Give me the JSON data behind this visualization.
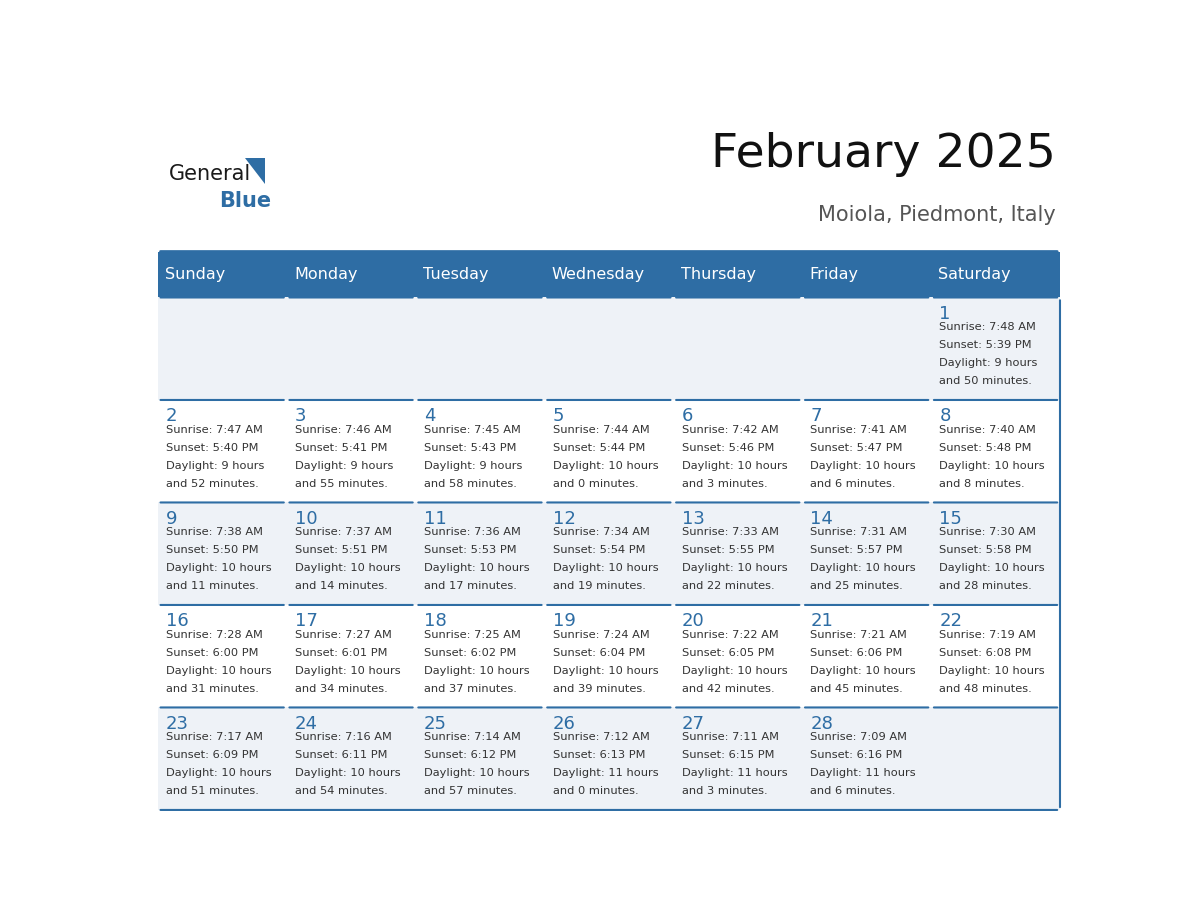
{
  "title": "February 2025",
  "subtitle": "Moiola, Piedmont, Italy",
  "header_bg": "#2E6DA4",
  "header_text_color": "#FFFFFF",
  "grid_line_color": "#2E6DA4",
  "day_number_color": "#2E6DA4",
  "text_color": "#333333",
  "days_of_week": [
    "Sunday",
    "Monday",
    "Tuesday",
    "Wednesday",
    "Thursday",
    "Friday",
    "Saturday"
  ],
  "calendar_data": [
    [
      null,
      null,
      null,
      null,
      null,
      null,
      {
        "day": 1,
        "sunrise": "7:48 AM",
        "sunset": "5:39 PM",
        "daylight1": "9 hours",
        "daylight2": "and 50 minutes."
      }
    ],
    [
      {
        "day": 2,
        "sunrise": "7:47 AM",
        "sunset": "5:40 PM",
        "daylight1": "9 hours",
        "daylight2": "and 52 minutes."
      },
      {
        "day": 3,
        "sunrise": "7:46 AM",
        "sunset": "5:41 PM",
        "daylight1": "9 hours",
        "daylight2": "and 55 minutes."
      },
      {
        "day": 4,
        "sunrise": "7:45 AM",
        "sunset": "5:43 PM",
        "daylight1": "9 hours",
        "daylight2": "and 58 minutes."
      },
      {
        "day": 5,
        "sunrise": "7:44 AM",
        "sunset": "5:44 PM",
        "daylight1": "10 hours",
        "daylight2": "and 0 minutes."
      },
      {
        "day": 6,
        "sunrise": "7:42 AM",
        "sunset": "5:46 PM",
        "daylight1": "10 hours",
        "daylight2": "and 3 minutes."
      },
      {
        "day": 7,
        "sunrise": "7:41 AM",
        "sunset": "5:47 PM",
        "daylight1": "10 hours",
        "daylight2": "and 6 minutes."
      },
      {
        "day": 8,
        "sunrise": "7:40 AM",
        "sunset": "5:48 PM",
        "daylight1": "10 hours",
        "daylight2": "and 8 minutes."
      }
    ],
    [
      {
        "day": 9,
        "sunrise": "7:38 AM",
        "sunset": "5:50 PM",
        "daylight1": "10 hours",
        "daylight2": "and 11 minutes."
      },
      {
        "day": 10,
        "sunrise": "7:37 AM",
        "sunset": "5:51 PM",
        "daylight1": "10 hours",
        "daylight2": "and 14 minutes."
      },
      {
        "day": 11,
        "sunrise": "7:36 AM",
        "sunset": "5:53 PM",
        "daylight1": "10 hours",
        "daylight2": "and 17 minutes."
      },
      {
        "day": 12,
        "sunrise": "7:34 AM",
        "sunset": "5:54 PM",
        "daylight1": "10 hours",
        "daylight2": "and 19 minutes."
      },
      {
        "day": 13,
        "sunrise": "7:33 AM",
        "sunset": "5:55 PM",
        "daylight1": "10 hours",
        "daylight2": "and 22 minutes."
      },
      {
        "day": 14,
        "sunrise": "7:31 AM",
        "sunset": "5:57 PM",
        "daylight1": "10 hours",
        "daylight2": "and 25 minutes."
      },
      {
        "day": 15,
        "sunrise": "7:30 AM",
        "sunset": "5:58 PM",
        "daylight1": "10 hours",
        "daylight2": "and 28 minutes."
      }
    ],
    [
      {
        "day": 16,
        "sunrise": "7:28 AM",
        "sunset": "6:00 PM",
        "daylight1": "10 hours",
        "daylight2": "and 31 minutes."
      },
      {
        "day": 17,
        "sunrise": "7:27 AM",
        "sunset": "6:01 PM",
        "daylight1": "10 hours",
        "daylight2": "and 34 minutes."
      },
      {
        "day": 18,
        "sunrise": "7:25 AM",
        "sunset": "6:02 PM",
        "daylight1": "10 hours",
        "daylight2": "and 37 minutes."
      },
      {
        "day": 19,
        "sunrise": "7:24 AM",
        "sunset": "6:04 PM",
        "daylight1": "10 hours",
        "daylight2": "and 39 minutes."
      },
      {
        "day": 20,
        "sunrise": "7:22 AM",
        "sunset": "6:05 PM",
        "daylight1": "10 hours",
        "daylight2": "and 42 minutes."
      },
      {
        "day": 21,
        "sunrise": "7:21 AM",
        "sunset": "6:06 PM",
        "daylight1": "10 hours",
        "daylight2": "and 45 minutes."
      },
      {
        "day": 22,
        "sunrise": "7:19 AM",
        "sunset": "6:08 PM",
        "daylight1": "10 hours",
        "daylight2": "and 48 minutes."
      }
    ],
    [
      {
        "day": 23,
        "sunrise": "7:17 AM",
        "sunset": "6:09 PM",
        "daylight1": "10 hours",
        "daylight2": "and 51 minutes."
      },
      {
        "day": 24,
        "sunrise": "7:16 AM",
        "sunset": "6:11 PM",
        "daylight1": "10 hours",
        "daylight2": "and 54 minutes."
      },
      {
        "day": 25,
        "sunrise": "7:14 AM",
        "sunset": "6:12 PM",
        "daylight1": "10 hours",
        "daylight2": "and 57 minutes."
      },
      {
        "day": 26,
        "sunrise": "7:12 AM",
        "sunset": "6:13 PM",
        "daylight1": "11 hours",
        "daylight2": "and 0 minutes."
      },
      {
        "day": 27,
        "sunrise": "7:11 AM",
        "sunset": "6:15 PM",
        "daylight1": "11 hours",
        "daylight2": "and 3 minutes."
      },
      {
        "day": 28,
        "sunrise": "7:09 AM",
        "sunset": "6:16 PM",
        "daylight1": "11 hours",
        "daylight2": "and 6 minutes."
      },
      null
    ]
  ],
  "logo_triangle_color": "#2E6DA4"
}
